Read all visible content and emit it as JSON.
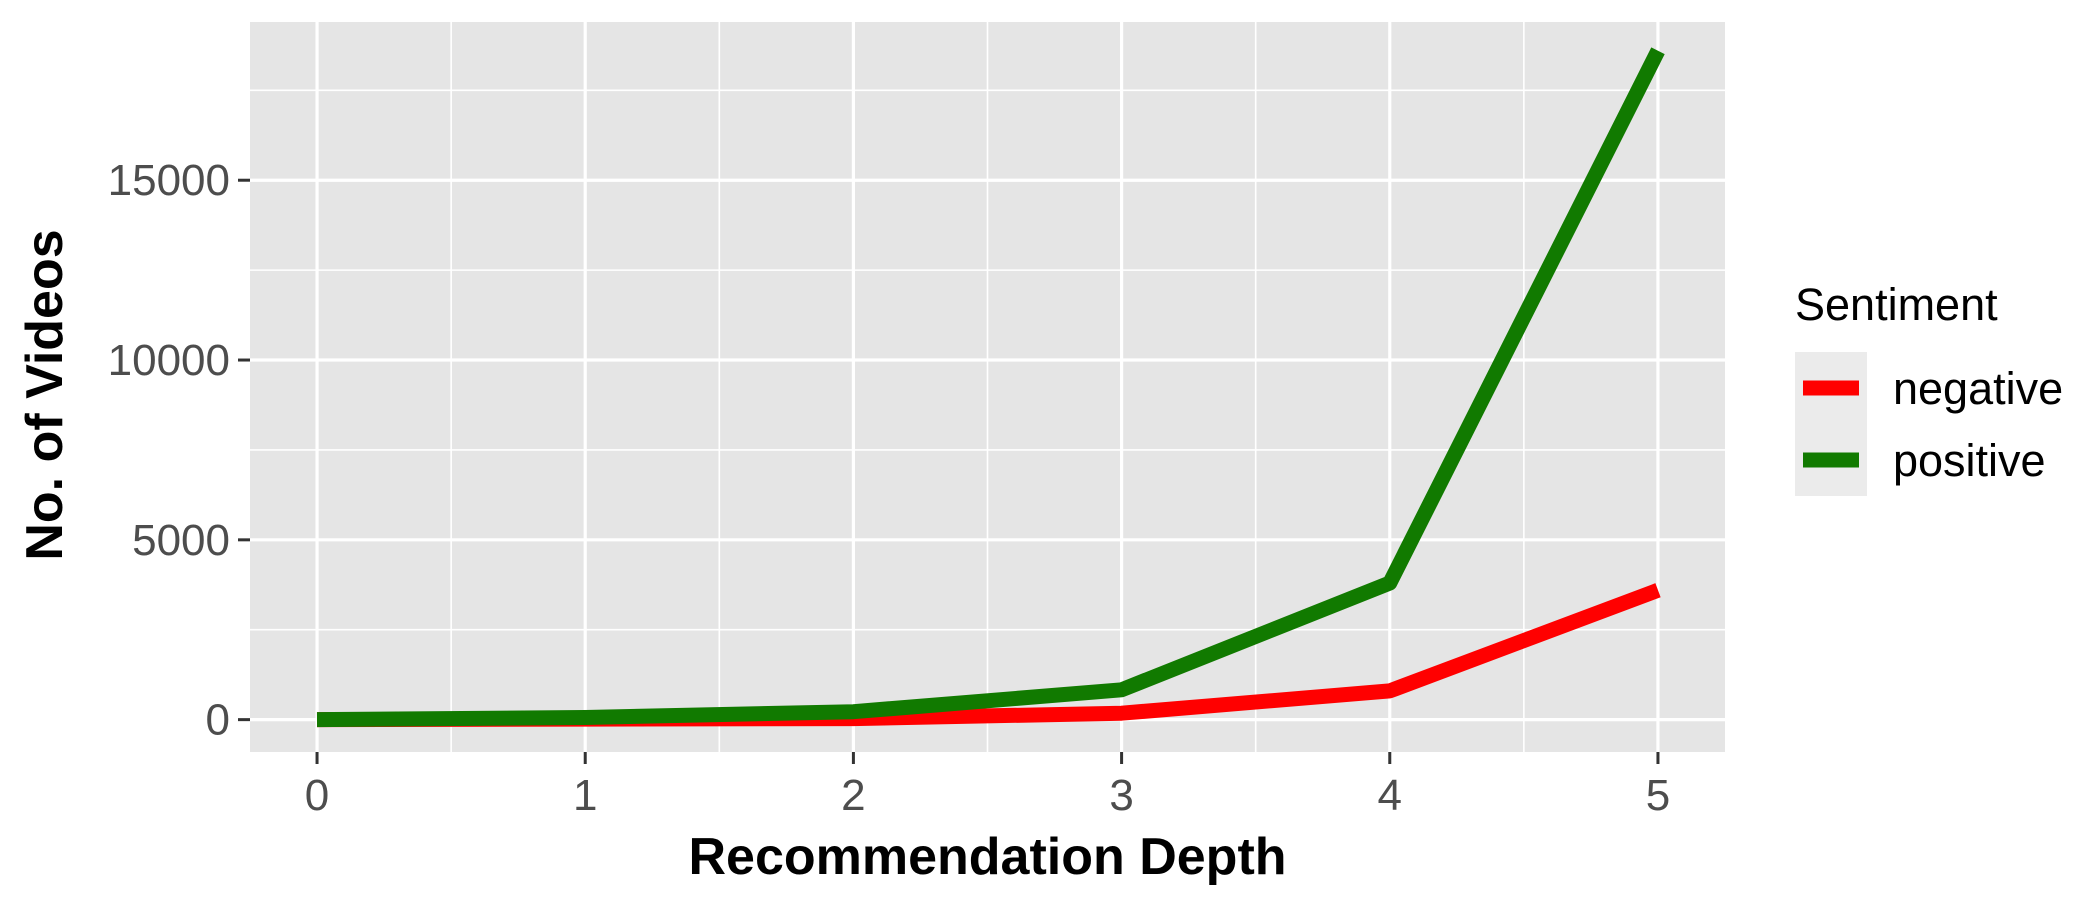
{
  "chart_data": {
    "type": "line",
    "xlabel": "Recommendation Depth",
    "ylabel": "No. of Videos",
    "x": [
      0,
      1,
      2,
      3,
      4,
      5
    ],
    "xticks": [
      "0",
      "1",
      "2",
      "3",
      "4",
      "5"
    ],
    "yticks": [
      "0",
      "5000",
      "10000",
      "15000"
    ],
    "xlim": [
      -0.25,
      5.25
    ],
    "ylim": [
      -900,
      19400
    ],
    "grid": true,
    "legend": {
      "title": "Sentiment",
      "placement": "right"
    },
    "series": [
      {
        "name": "negative",
        "color": "#ff0000",
        "values": [
          0,
          15,
          30,
          180,
          800,
          3600
        ]
      },
      {
        "name": "positive",
        "color": "#117a00",
        "values": [
          0,
          60,
          220,
          830,
          3800,
          18600
        ]
      }
    ],
    "colors": {
      "panel": "#e5e5e5",
      "grid": "#ffffff",
      "legend_key": "#ebebeb"
    }
  }
}
